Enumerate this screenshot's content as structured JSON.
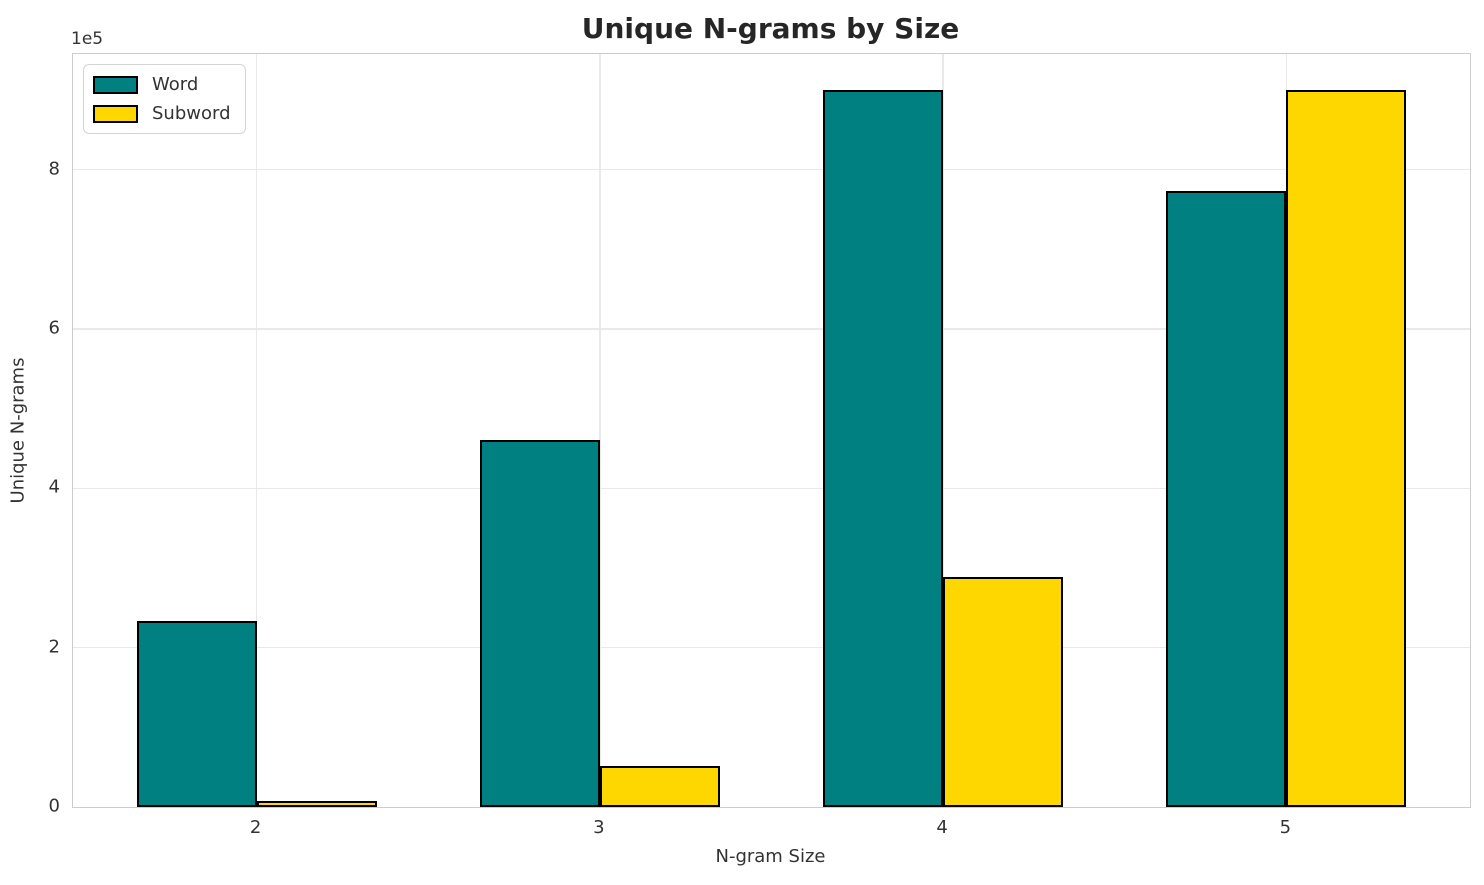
{
  "title": "Unique N-grams by Size",
  "axes": {
    "x_label": "N-gram Size",
    "y_label": "Unique N-grams",
    "offset_text": "1e5"
  },
  "legend": {
    "items": [
      {
        "label": "Word",
        "color": "#008080"
      },
      {
        "label": "Subword",
        "color": "#FFD700"
      }
    ]
  },
  "chart_data": {
    "type": "bar",
    "title": "Unique N-grams by Size",
    "xlabel": "N-gram Size",
    "ylabel": "Unique N-grams",
    "categories": [
      "2",
      "3",
      "4",
      "5"
    ],
    "series": [
      {
        "name": "Word",
        "color": "#008080",
        "values": [
          233000,
          460000,
          900000,
          773000
        ]
      },
      {
        "name": "Subword",
        "color": "#FFD700",
        "values": [
          7500,
          52000,
          289000,
          900000
        ]
      }
    ],
    "ylim": [
      0,
      945000
    ],
    "y_tick_values": [
      0,
      200000,
      400000,
      600000,
      800000
    ],
    "y_tick_labels": [
      "0",
      "2",
      "4",
      "6",
      "8"
    ],
    "y_offset_factor": "1e5",
    "grid": true,
    "grid_axes": "both",
    "legend_position": "upper left",
    "bar_edge_color": "#000000",
    "bar_width_units": 0.35
  }
}
